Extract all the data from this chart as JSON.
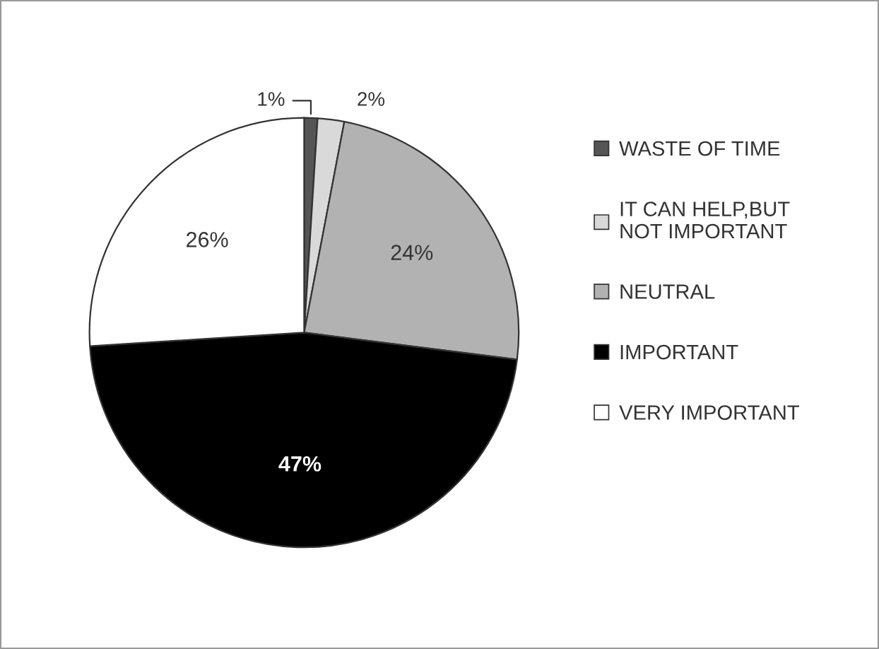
{
  "chart_data": {
    "type": "pie",
    "categories": [
      "WASTE OF TIME",
      "IT CAN HELP,BUT\nNOT IMPORTANT",
      "NEUTRAL",
      "IMPORTANT",
      "VERY IMPORTANT"
    ],
    "values": [
      1,
      2,
      24,
      47,
      26
    ],
    "colors": [
      "#555555",
      "#d9d9d9",
      "#b2b2b2",
      "#000000",
      "#ffffff"
    ],
    "value_labels": [
      "1%",
      "2%",
      "24%",
      "47%",
      "26%"
    ],
    "legend": "right"
  }
}
